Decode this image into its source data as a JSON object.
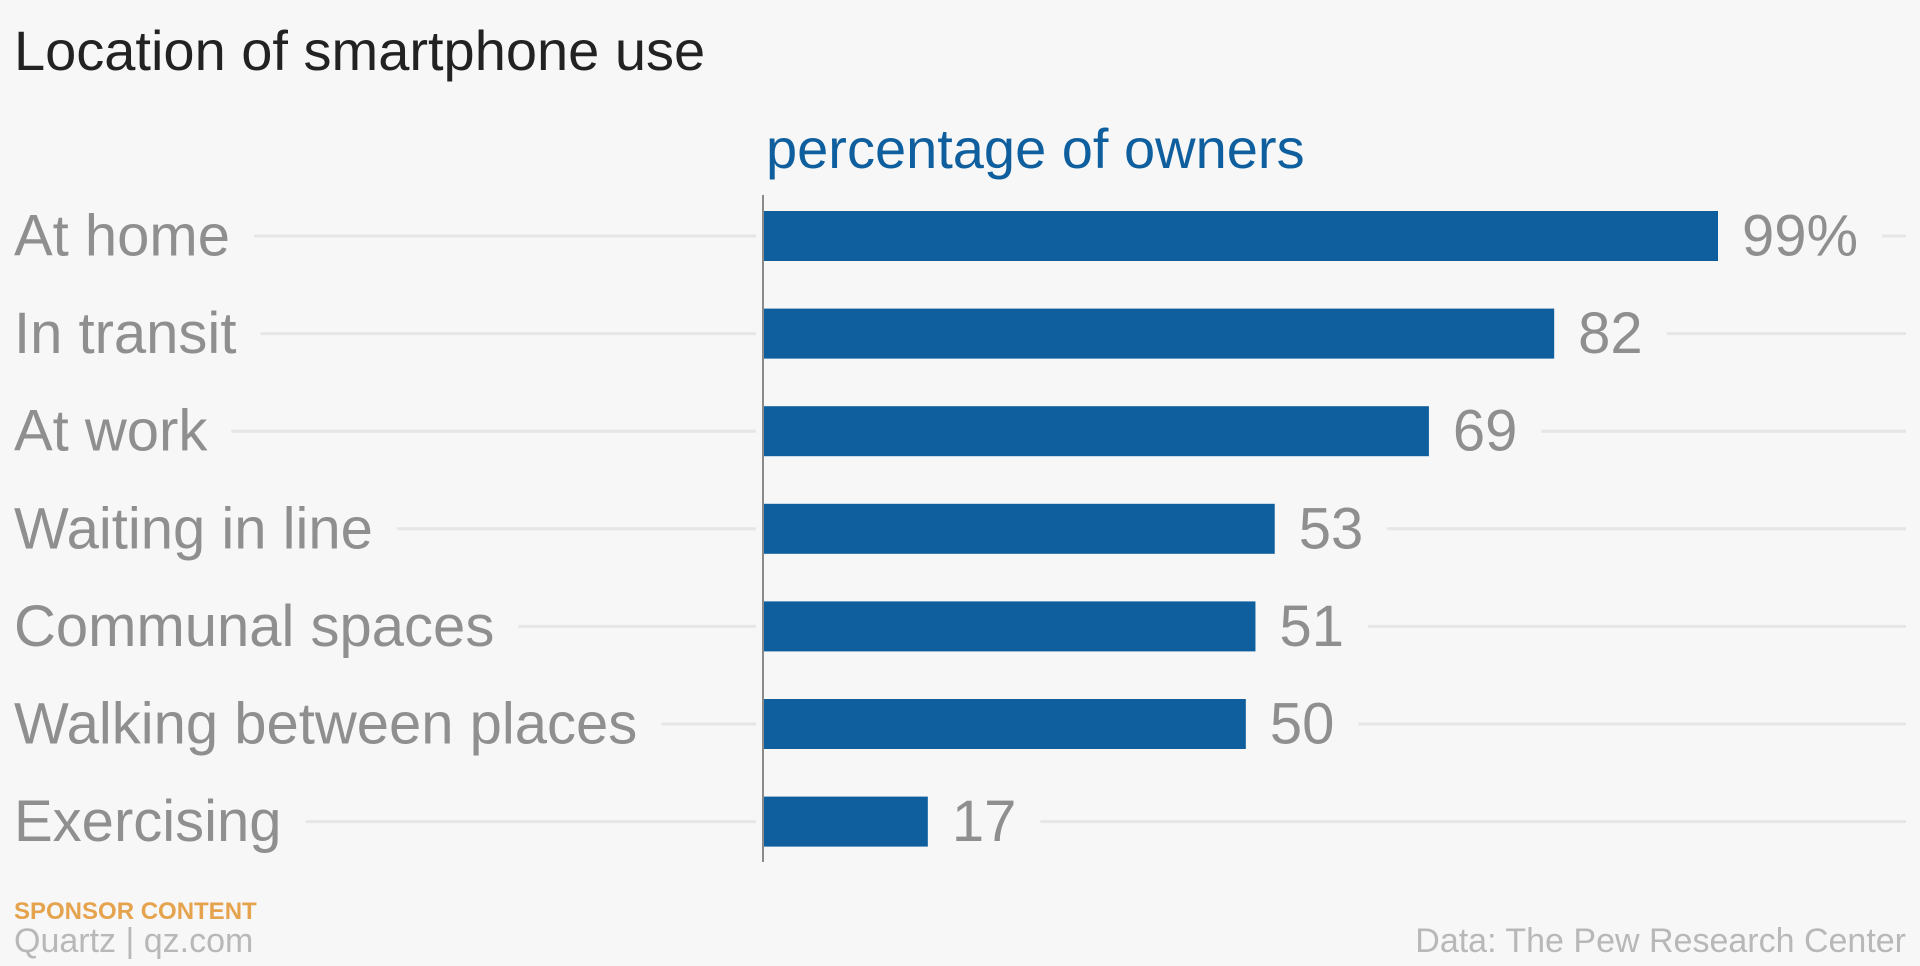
{
  "chart_data": {
    "type": "bar",
    "orientation": "horizontal",
    "title": "Location of smartphone use",
    "axis_title": "percentage of owners",
    "categories": [
      "At home",
      "In transit",
      "At work",
      "Waiting in line",
      "Communal spaces",
      "Walking between places",
      "Exercising"
    ],
    "values": [
      99,
      82,
      69,
      53,
      51,
      50,
      17
    ],
    "value_labels": [
      "99%",
      "82",
      "69",
      "53",
      "51",
      "50",
      "17"
    ],
    "xlim": [
      0,
      100
    ],
    "grid": true,
    "legend": "none",
    "bar_color": "#0f5f9e"
  },
  "footer": {
    "sponsor": "SPONSOR CONTENT",
    "publisher": "Quartz | qz.com",
    "source": "Data: The Pew Research Center"
  },
  "colors": {
    "bar": "#0f5f9e",
    "axis_title": "#0f5f9e",
    "sponsor": "#e6a34e",
    "label_text": "#8f8f8f",
    "footer_text": "#b8b8b8"
  }
}
